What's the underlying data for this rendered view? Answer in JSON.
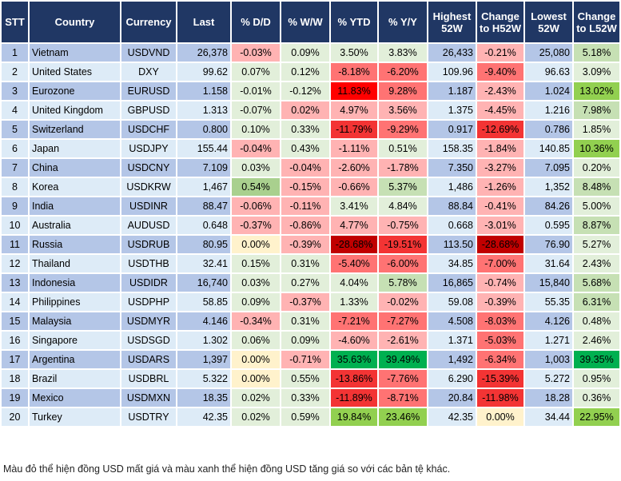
{
  "headers": [
    "STT",
    "Country",
    "Currency",
    "Last",
    "% D/D",
    "% W/W",
    "% YTD",
    "% Y/Y",
    "Highest 52W",
    "Change to H52W",
    "Lowest 52W",
    "Change to L52W"
  ],
  "palette": {
    "lr": "#ffb3b3",
    "r": "#ff7373",
    "rr": "#f33434",
    "R": "#ff0000",
    "dr": "#c00000",
    "lg": "#e2efda",
    "mg": "#c6e0b4",
    "mg2": "#a9d08e",
    "g": "#92d050",
    "dg": "#00b050",
    "y": "#fff2cc",
    "rowOdd": "#b4c6e7",
    "rowEven": "#ddebf7",
    "header": "#203764"
  },
  "rows": [
    [
      "1",
      "Vietnam",
      "USDVND",
      "26,378",
      "-0.03%",
      "0.09%",
      "3.50%",
      "3.83%",
      "26,433",
      "-0.21%",
      "25,080",
      "5.18%"
    ],
    [
      "2",
      "United States",
      "DXY",
      "99.62",
      "0.07%",
      "0.12%",
      "-8.18%",
      "-6.20%",
      "109.96",
      "-9.40%",
      "96.63",
      "3.09%"
    ],
    [
      "3",
      "Eurozone",
      "EURUSD",
      "1.158",
      "-0.01%",
      "-0.12%",
      "11.83%",
      "9.28%",
      "1.187",
      "-2.43%",
      "1.024",
      "13.02%"
    ],
    [
      "4",
      "United Kingdom",
      "GBPUSD",
      "1.313",
      "-0.07%",
      "0.02%",
      "4.97%",
      "3.56%",
      "1.375",
      "-4.45%",
      "1.216",
      "7.98%"
    ],
    [
      "5",
      "Switzerland",
      "USDCHF",
      "0.800",
      "0.10%",
      "0.33%",
      "-11.79%",
      "-9.29%",
      "0.917",
      "-12.69%",
      "0.786",
      "1.85%"
    ],
    [
      "6",
      "Japan",
      "USDJPY",
      "155.44",
      "-0.04%",
      "0.43%",
      "-1.11%",
      "0.51%",
      "158.35",
      "-1.84%",
      "140.85",
      "10.36%"
    ],
    [
      "7",
      "China",
      "USDCNY",
      "7.109",
      "0.03%",
      "-0.04%",
      "-2.60%",
      "-1.78%",
      "7.350",
      "-3.27%",
      "7.095",
      "0.20%"
    ],
    [
      "8",
      "Korea",
      "USDKRW",
      "1,467",
      "0.54%",
      "-0.15%",
      "-0.66%",
      "5.37%",
      "1,486",
      "-1.26%",
      "1,352",
      "8.48%"
    ],
    [
      "9",
      "India",
      "USDINR",
      "88.47",
      "-0.06%",
      "-0.11%",
      "3.41%",
      "4.84%",
      "88.84",
      "-0.41%",
      "84.26",
      "5.00%"
    ],
    [
      "10",
      "Australia",
      "AUDUSD",
      "0.648",
      "-0.37%",
      "-0.86%",
      "4.77%",
      "-0.75%",
      "0.668",
      "-3.01%",
      "0.595",
      "8.87%"
    ],
    [
      "11",
      "Russia",
      "USDRUB",
      "80.95",
      "0.00%",
      "-0.39%",
      "-28.68%",
      "-19.51%",
      "113.50",
      "-28.68%",
      "76.90",
      "5.27%"
    ],
    [
      "12",
      "Thailand",
      "USDTHB",
      "32.41",
      "0.15%",
      "0.31%",
      "-5.40%",
      "-6.00%",
      "34.85",
      "-7.00%",
      "31.64",
      "2.43%"
    ],
    [
      "13",
      "Indonesia",
      "USDIDR",
      "16,740",
      "0.03%",
      "0.27%",
      "4.04%",
      "5.78%",
      "16,865",
      "-0.74%",
      "15,840",
      "5.68%"
    ],
    [
      "14",
      "Philippines",
      "USDPHP",
      "58.85",
      "0.09%",
      "-0.37%",
      "1.33%",
      "-0.02%",
      "59.08",
      "-0.39%",
      "55.35",
      "6.31%"
    ],
    [
      "15",
      "Malaysia",
      "USDMYR",
      "4.146",
      "-0.34%",
      "0.31%",
      "-7.21%",
      "-7.27%",
      "4.508",
      "-8.03%",
      "4.126",
      "0.48%"
    ],
    [
      "16",
      "Singapore",
      "USDSGD",
      "1.302",
      "0.06%",
      "0.09%",
      "-4.60%",
      "-2.61%",
      "1.371",
      "-5.03%",
      "1.271",
      "2.46%"
    ],
    [
      "17",
      "Argentina",
      "USDARS",
      "1,397",
      "0.00%",
      "-0.71%",
      "35.63%",
      "39.49%",
      "1,492",
      "-6.34%",
      "1,003",
      "39.35%"
    ],
    [
      "18",
      "Brazil",
      "USDBRL",
      "5.322",
      "0.00%",
      "0.55%",
      "-13.86%",
      "-7.76%",
      "6.290",
      "-15.39%",
      "5.272",
      "0.95%"
    ],
    [
      "19",
      "Mexico",
      "USDMXN",
      "18.35",
      "0.02%",
      "0.33%",
      "-11.89%",
      "-8.71%",
      "20.84",
      "-11.98%",
      "18.28",
      "0.36%"
    ],
    [
      "20",
      "Turkey",
      "USDTRY",
      "42.35",
      "0.02%",
      "0.59%",
      "19.84%",
      "23.46%",
      "42.35",
      "0.00%",
      "34.44",
      "22.95%"
    ]
  ],
  "cell_colors": [
    [
      "lr",
      "lg",
      "lg",
      "lg",
      "lr",
      "mg"
    ],
    [
      "lg",
      "lg",
      "r",
      "r",
      "r",
      "lg"
    ],
    [
      "lg",
      "lg",
      "R",
      "r",
      "lr",
      "g"
    ],
    [
      "lg",
      "lr",
      "lr",
      "lr",
      "lr",
      "mg"
    ],
    [
      "lg",
      "lg",
      "rr",
      "r",
      "rr",
      "lg"
    ],
    [
      "lr",
      "lg",
      "lr",
      "lg",
      "lr",
      "g"
    ],
    [
      "lg",
      "lr",
      "lr",
      "lr",
      "lr",
      "lg"
    ],
    [
      "mg2",
      "lr",
      "lr",
      "mg",
      "lr",
      "mg"
    ],
    [
      "lr",
      "lr",
      "lg",
      "lg",
      "lr",
      "lg"
    ],
    [
      "lr",
      "lr",
      "lr",
      "lr",
      "lr",
      "mg"
    ],
    [
      "y",
      "lr",
      "dr",
      "rr",
      "dr",
      "lg"
    ],
    [
      "lg",
      "lg",
      "r",
      "r",
      "r",
      "lg"
    ],
    [
      "lg",
      "lg",
      "lg",
      "mg",
      "lr",
      "mg"
    ],
    [
      "lg",
      "lr",
      "lg",
      "lr",
      "lr",
      "mg"
    ],
    [
      "lr",
      "lg",
      "r",
      "r",
      "r",
      "lg"
    ],
    [
      "lg",
      "lg",
      "lr",
      "lr",
      "r",
      "lg"
    ],
    [
      "y",
      "lr",
      "dg",
      "dg",
      "r",
      "dg"
    ],
    [
      "y",
      "lg",
      "rr",
      "r",
      "rr",
      "lg"
    ],
    [
      "lg",
      "lg",
      "rr",
      "r",
      "rr",
      "lg"
    ],
    [
      "lg",
      "lg",
      "g",
      "g",
      "y",
      "g"
    ]
  ],
  "footnote": "Màu đỏ thể hiện đồng USD mất giá và màu xanh thể hiện đồng USD tăng giá so với các bản tệ khác."
}
